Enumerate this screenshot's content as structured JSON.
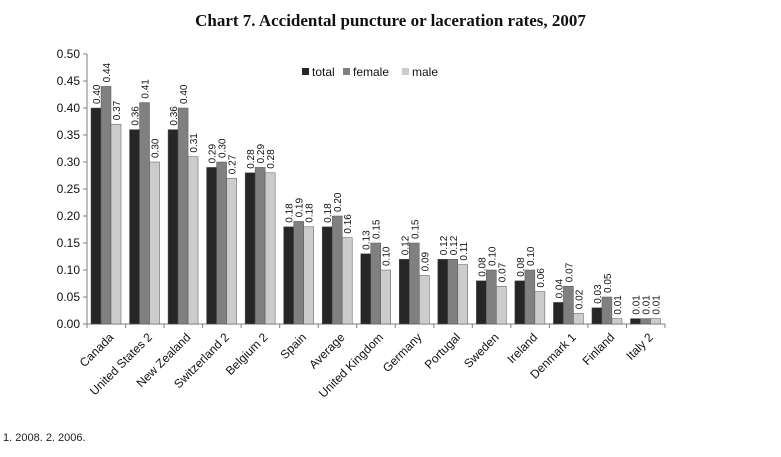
{
  "chart_data": {
    "type": "bar",
    "title": "Chart 7. Accidental puncture or laceration rates, 2007",
    "footnote": "1. 2008. 2. 2006.",
    "categories": [
      "Canada",
      "United States 2",
      "New Zealand",
      "Switzerland 2",
      "Belgium 2",
      "Spain",
      "Average",
      "United Kingdom",
      "Germany",
      "Portugal",
      "Sweden",
      "Ireland",
      "Denmark 1",
      "Finland",
      "Italy 2"
    ],
    "series": [
      {
        "name": "total",
        "color": "#262626",
        "values": [
          0.4,
          0.36,
          0.36,
          0.29,
          0.28,
          0.18,
          0.18,
          0.13,
          0.12,
          0.12,
          0.08,
          0.08,
          0.04,
          0.03,
          0.01
        ],
        "labels": [
          "0.40",
          "0.36",
          "0.36",
          "0.29",
          "0.28",
          "0.18",
          "0.18",
          "0.13",
          "0.12",
          "0.12",
          "0.08",
          "0.08",
          "0.04",
          "0.03",
          "0.01"
        ]
      },
      {
        "name": "female",
        "color": "#808080",
        "values": [
          0.44,
          0.41,
          0.4,
          0.3,
          0.29,
          0.19,
          0.2,
          0.15,
          0.15,
          0.12,
          0.1,
          0.1,
          0.07,
          0.05,
          0.01
        ],
        "labels": [
          "0.44",
          "0.41",
          "0.40",
          "0.30",
          "0.29",
          "0.19",
          "0.20",
          "0.15",
          "0.15",
          "0.12",
          "0.10",
          "0.10",
          "0.07",
          "0.05",
          "0.01"
        ]
      },
      {
        "name": "male",
        "color": "#cccccc",
        "values": [
          0.37,
          0.3,
          0.31,
          0.27,
          0.28,
          0.18,
          0.16,
          0.1,
          0.09,
          0.11,
          0.07,
          0.06,
          0.02,
          0.01,
          0.01
        ],
        "labels": [
          "0.37",
          "0.30",
          "0.31",
          "0.27",
          "0.28",
          "0.18",
          "0.16",
          "0.10",
          "0.09",
          "0.11",
          "0.07",
          "0.06",
          "0.02",
          "0.01",
          "0.01"
        ]
      }
    ],
    "ylim": [
      0,
      0.5
    ],
    "yticks": [
      "0.00",
      "0.05",
      "0.10",
      "0.15",
      "0.20",
      "0.25",
      "0.30",
      "0.35",
      "0.40",
      "0.45",
      "0.50"
    ],
    "ytick_values": [
      0,
      0.05,
      0.1,
      0.15,
      0.2,
      0.25,
      0.3,
      0.35,
      0.4,
      0.45,
      0.5
    ],
    "xlabel": "",
    "ylabel": "",
    "grid": false,
    "legend_position": "top-right"
  }
}
